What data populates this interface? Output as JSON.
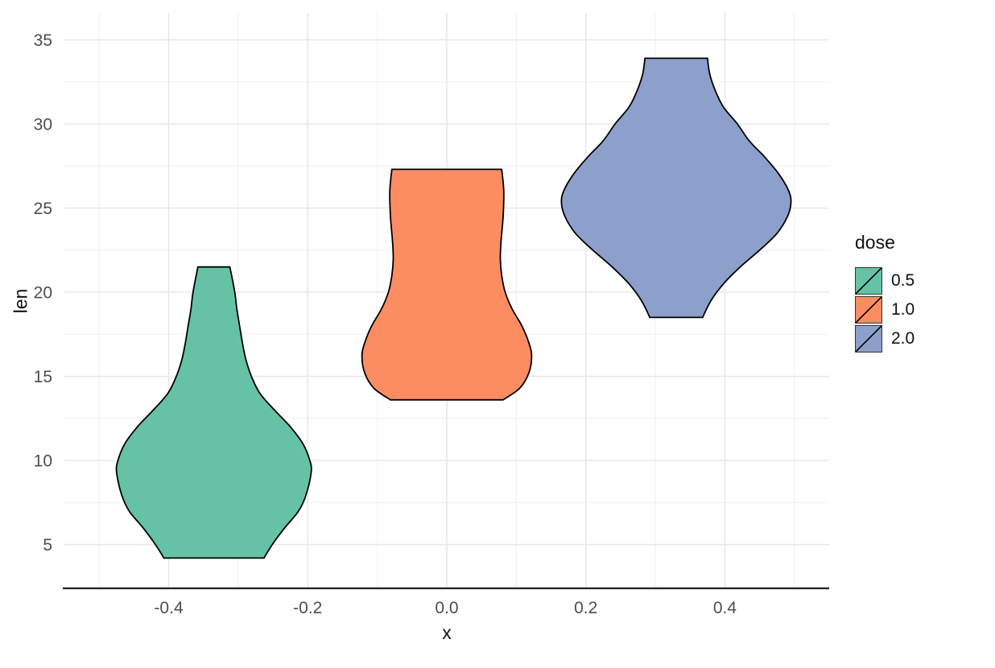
{
  "chart": {
    "x_title": "x",
    "y_title": "len",
    "legend": {
      "title": "dose",
      "items": [
        {
          "label": "0.5",
          "color": "#66c2a5"
        },
        {
          "label": "1.0",
          "color": "#fc8d62"
        },
        {
          "label": "2.0",
          "color": "#8da0cb"
        }
      ]
    }
  },
  "chart_data": {
    "type": "violin",
    "title": "",
    "xlabel": "x",
    "ylabel": "len",
    "xlim": [
      -0.55,
      0.55
    ],
    "ylim": [
      2.4,
      36.6
    ],
    "x_ticks": [
      -0.4,
      -0.2,
      0.0,
      0.2,
      0.4
    ],
    "x_tick_labels": [
      "-0.4",
      "-0.2",
      "0.0",
      "0.2",
      "0.4"
    ],
    "y_ticks": [
      5,
      10,
      15,
      20,
      25,
      30,
      35
    ],
    "y_tick_labels": [
      "5",
      "10",
      "15",
      "20",
      "25",
      "30",
      "35"
    ],
    "grid": {
      "major_color": "#e7e7e7",
      "minor_color": "#f2f2f2"
    },
    "axis_line_color": "#222222",
    "outline_width": 1.8,
    "legend_position": "right",
    "series": [
      {
        "name": "0.5",
        "fill": "#66c2a5",
        "outline": "#000000",
        "center_x": -0.335,
        "len_range": [
          4.2,
          21.5
        ],
        "profile": [
          [
            4.2,
            0.072
          ],
          [
            5.0,
            0.084
          ],
          [
            6.0,
            0.102
          ],
          [
            7.0,
            0.122
          ],
          [
            8.0,
            0.133
          ],
          [
            9.3,
            0.14
          ],
          [
            10.0,
            0.138
          ],
          [
            11.0,
            0.128
          ],
          [
            12.0,
            0.11
          ],
          [
            13.0,
            0.087
          ],
          [
            14.0,
            0.066
          ],
          [
            15.0,
            0.054
          ],
          [
            16.0,
            0.046
          ],
          [
            17.0,
            0.041
          ],
          [
            18.0,
            0.037
          ],
          [
            19.0,
            0.033
          ],
          [
            20.0,
            0.03
          ],
          [
            21.5,
            0.023
          ]
        ]
      },
      {
        "name": "1.0",
        "fill": "#fc8d62",
        "outline": "#000000",
        "center_x": 0.0,
        "len_range": [
          13.6,
          27.3
        ],
        "profile": [
          [
            13.6,
            0.081
          ],
          [
            14.3,
            0.105
          ],
          [
            15.2,
            0.118
          ],
          [
            16.2,
            0.122
          ],
          [
            17.0,
            0.118
          ],
          [
            18.0,
            0.108
          ],
          [
            19.0,
            0.094
          ],
          [
            20.0,
            0.084
          ],
          [
            21.0,
            0.079
          ],
          [
            22.0,
            0.077
          ],
          [
            23.0,
            0.078
          ],
          [
            24.5,
            0.081
          ],
          [
            26.0,
            0.082
          ],
          [
            27.3,
            0.079
          ]
        ]
      },
      {
        "name": "2.0",
        "fill": "#8da0cb",
        "outline": "#000000",
        "center_x": 0.33,
        "len_range": [
          18.5,
          33.9
        ],
        "profile": [
          [
            18.5,
            0.038
          ],
          [
            19.5,
            0.05
          ],
          [
            20.5,
            0.068
          ],
          [
            21.5,
            0.092
          ],
          [
            22.5,
            0.12
          ],
          [
            23.5,
            0.145
          ],
          [
            24.5,
            0.16
          ],
          [
            25.3,
            0.165
          ],
          [
            26.0,
            0.162
          ],
          [
            27.0,
            0.148
          ],
          [
            28.0,
            0.128
          ],
          [
            29.0,
            0.105
          ],
          [
            30.0,
            0.088
          ],
          [
            31.0,
            0.068
          ],
          [
            32.0,
            0.056
          ],
          [
            33.0,
            0.048
          ],
          [
            33.9,
            0.045
          ]
        ]
      }
    ]
  }
}
